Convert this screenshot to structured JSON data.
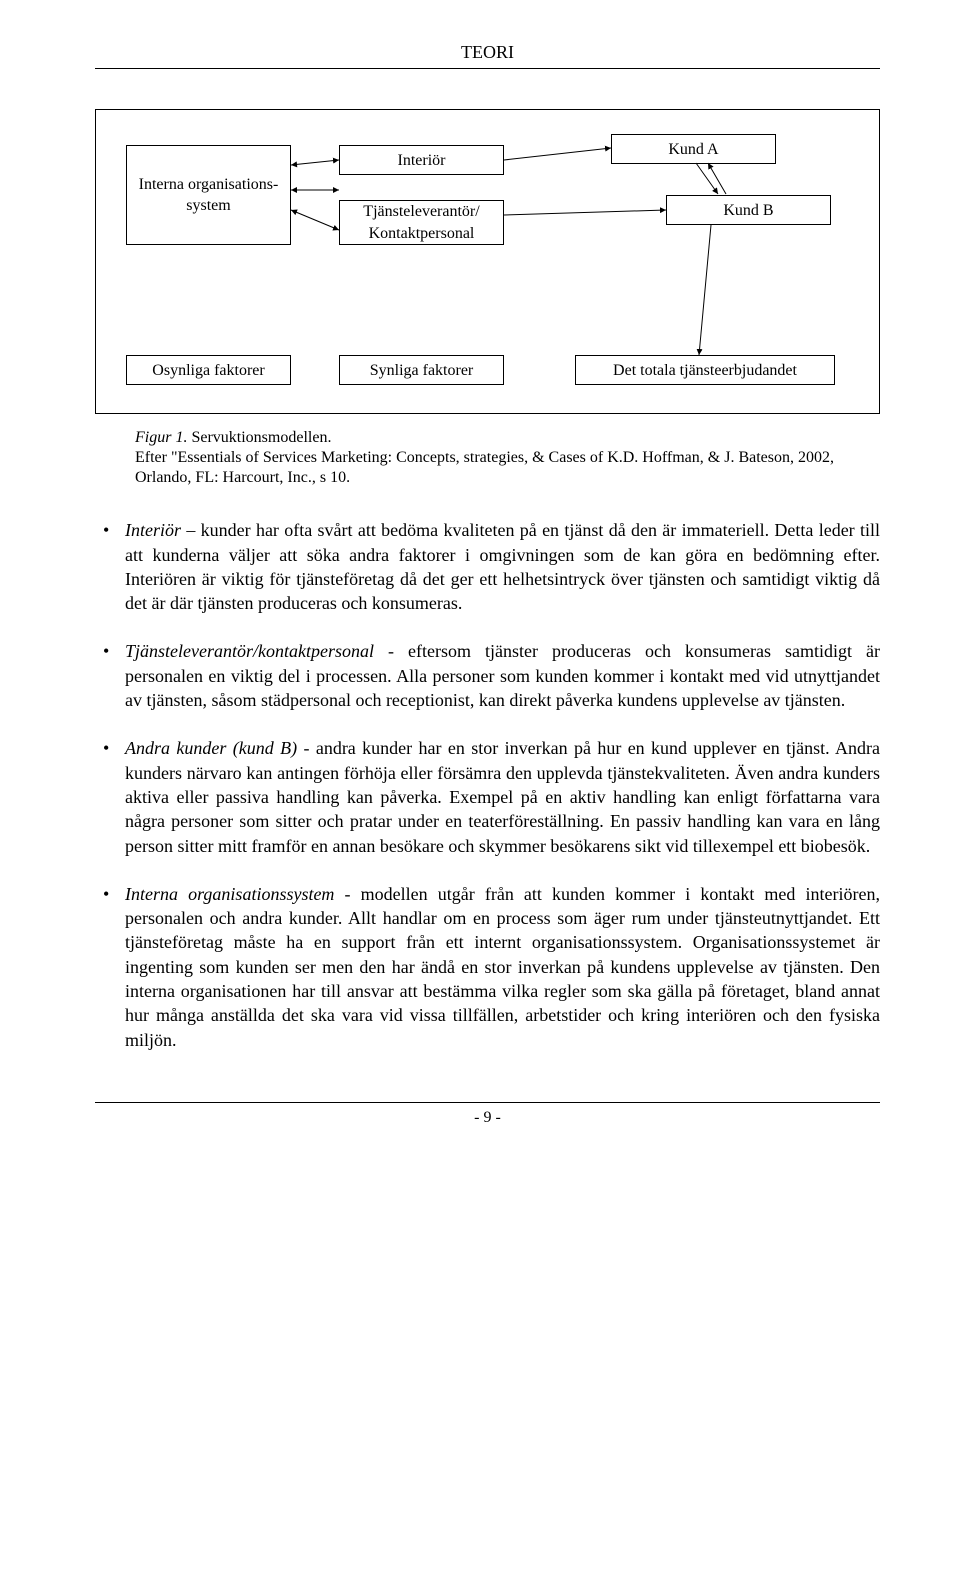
{
  "header": {
    "title": "TEORI"
  },
  "diagram": {
    "boxes": {
      "ios": {
        "label": "Interna organisations-system"
      },
      "inter": {
        "label": "Interiör"
      },
      "tjk": {
        "label": "Tjänsteleverantör/ Kontaktpersonal"
      },
      "kunda": {
        "label": "Kund A"
      },
      "kundb": {
        "label": "Kund B"
      },
      "osyn": {
        "label": "Osynliga faktorer"
      },
      "syn": {
        "label": "Synliga faktorer"
      },
      "totala": {
        "label": "Det totala tjänsteerbjudandet"
      }
    },
    "arrow_color": "#000000",
    "double_arrows": [
      [
        [
          195,
          55
        ],
        [
          243,
          50
        ]
      ],
      [
        [
          195,
          80
        ],
        [
          243,
          80
        ]
      ],
      [
        [
          195,
          100
        ],
        [
          243,
          120
        ]
      ]
    ],
    "single_arrows": [
      [
        [
          408,
          50
        ],
        [
          515,
          38
        ]
      ],
      [
        [
          408,
          105
        ],
        [
          570,
          100
        ]
      ],
      [
        [
          615,
          115
        ],
        [
          603,
          245
        ]
      ],
      [
        [
          600,
          53
        ],
        [
          622,
          84
        ]
      ],
      [
        [
          630,
          84
        ],
        [
          612,
          53
        ]
      ]
    ]
  },
  "figure": {
    "label": "Figur 1.",
    "name": "Servuktionsmodellen.",
    "source": "Efter \"Essentials of Services Marketing: Concepts, strategies, & Cases of K.D. Hoffman, & J. Bateson, 2002, Orlando, FL: Harcourt, Inc., s 10."
  },
  "bullets": [
    {
      "lead": "Interiör",
      "sep": " – ",
      "text": "kunder har ofta svårt att bedöma kvaliteten på en tjänst då den är immateriell. Detta leder till att kunderna väljer att söka andra faktorer i omgivningen som de kan göra en bedömning efter. Interiören är viktig för tjänsteföretag då det ger ett helhetsintryck över tjänsten och samtidigt viktig då det är där tjänsten produceras och konsumeras."
    },
    {
      "lead": "Tjänsteleverantör/kontaktpersonal",
      "sep": " - ",
      "text": "eftersom tjänster produceras och konsumeras samtidigt är personalen en viktig del i processen. Alla personer som kunden kommer i kontakt med vid utnyttjandet av tjänsten, såsom städpersonal och receptionist, kan direkt påverka kundens upplevelse av tjänsten."
    },
    {
      "lead": "Andra kunder (kund B)",
      "sep": " - ",
      "text": "andra kunder har en stor inverkan på hur en kund upplever en tjänst. Andra kunders närvaro kan antingen förhöja eller försämra den upplevda tjänstekvaliteten. Även andra kunders aktiva eller passiva handling kan påverka. Exempel på en aktiv handling kan enligt författarna vara några personer som sitter och pratar under en teaterföreställning. En passiv handling kan vara en lång person sitter mitt framför en annan besökare och skymmer besökarens sikt vid tillexempel ett biobesök."
    },
    {
      "lead": "Interna organisationssystem",
      "sep": " - ",
      "text": "modellen utgår från att kunden kommer i kontakt med interiören, personalen och andra kunder. Allt handlar om en process som äger rum under tjänsteutnyttjandet. Ett tjänsteföretag måste ha en support från ett internt organisationssystem. Organisationssystemet är ingenting som kunden ser men den har ändå en stor inverkan på kundens upplevelse av tjänsten. Den interna organisationen har till ansvar att bestämma vilka regler som ska gälla på företaget, bland annat hur många anställda det ska vara vid vissa tillfällen, arbetstider och kring interiören och den fysiska miljön."
    }
  ],
  "footer": {
    "page": "- 9 -"
  }
}
